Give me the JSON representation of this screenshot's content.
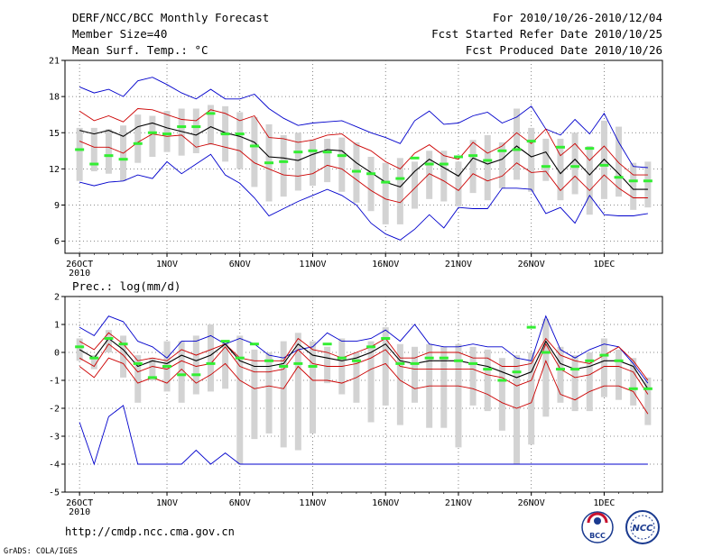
{
  "header": {
    "line1": "DERF/NCC/BCC Monthly Forecast",
    "line2": "Member Size=40",
    "line3": "Mean Surf. Temp.: °C",
    "right1": "For 2010/10/26-2010/12/04",
    "right2": "Fcst Started Refer Date 2010/10/25",
    "right3": "Fcst Produced Date 2010/10/26"
  },
  "footer": {
    "url": "http://cmdp.ncc.cma.gov.cn",
    "grads": "GrADS: COLA/IGES",
    "logo_bcc": "BCC",
    "logo_ncc": "NCC"
  },
  "colors": {
    "envelope": "#0000cc",
    "spread": "#cc0000",
    "mean": "#000000",
    "box": "#d3d3d3",
    "median": "#33ee33",
    "grid": "#666666"
  },
  "chart_data": [
    {
      "type": "line",
      "title": "Mean Surf. Temp.: °C",
      "ylim": [
        5,
        21
      ],
      "yticks": [
        6,
        9,
        12,
        15,
        18,
        21
      ],
      "xticks": [
        {
          "day": 0,
          "label": "26OCT",
          "sub": "2010"
        },
        {
          "day": 6,
          "label": "1NOV"
        },
        {
          "day": 11,
          "label": "6NOV"
        },
        {
          "day": 16,
          "label": "11NOV"
        },
        {
          "day": 21,
          "label": "16NOV"
        },
        {
          "day": 26,
          "label": "21NOV"
        },
        {
          "day": 31,
          "label": "26NOV"
        },
        {
          "day": 36,
          "label": "1DEC"
        }
      ],
      "x_range": [
        -1,
        40
      ],
      "days": [
        0,
        1,
        2,
        3,
        4,
        5,
        6,
        7,
        8,
        9,
        10,
        11,
        12,
        13,
        14,
        15,
        16,
        17,
        18,
        19,
        20,
        21,
        22,
        23,
        24,
        25,
        26,
        27,
        28,
        29,
        30,
        31,
        32,
        33,
        34,
        35,
        36,
        37,
        38,
        39
      ],
      "series": [
        {
          "name": "max",
          "role": "envelope",
          "values": [
            18.8,
            18.3,
            18.6,
            18.0,
            19.3,
            19.6,
            19.0,
            18.3,
            17.8,
            18.6,
            17.8,
            17.8,
            18.2,
            17.0,
            16.2,
            15.6,
            15.8,
            15.9,
            16.0,
            15.5,
            15.0,
            14.6,
            14.1,
            16.0,
            16.8,
            15.7,
            15.8,
            16.4,
            16.7,
            15.8,
            16.3,
            17.2,
            15.3,
            14.8,
            16.1,
            14.9,
            16.6,
            14.2,
            12.2,
            12.1
          ]
        },
        {
          "name": "mean_plus_sd",
          "role": "spread",
          "values": [
            16.8,
            16.0,
            16.4,
            15.9,
            17.0,
            16.9,
            16.5,
            16.1,
            16.0,
            16.9,
            16.6,
            16.0,
            16.4,
            14.6,
            14.5,
            14.2,
            14.4,
            14.8,
            14.9,
            14.0,
            13.5,
            12.6,
            12.0,
            13.3,
            14.0,
            13.1,
            12.8,
            14.2,
            13.3,
            13.9,
            15.0,
            14.1,
            15.3,
            13.1,
            14.1,
            12.7,
            13.9,
            12.5,
            11.5,
            11.5
          ]
        },
        {
          "name": "mean",
          "role": "mean",
          "values": [
            15.2,
            14.9,
            15.2,
            14.7,
            15.5,
            15.8,
            15.4,
            15.1,
            14.8,
            15.5,
            15.0,
            14.7,
            14.2,
            13.0,
            12.9,
            12.7,
            13.2,
            13.6,
            13.5,
            12.5,
            11.7,
            10.9,
            10.5,
            11.8,
            12.8,
            12.1,
            11.4,
            12.9,
            12.4,
            12.8,
            13.9,
            13.0,
            13.4,
            11.6,
            12.8,
            11.5,
            12.8,
            11.6,
            10.3,
            10.3
          ]
        },
        {
          "name": "mean_minus_sd",
          "role": "spread",
          "values": [
            14.3,
            13.8,
            13.8,
            13.3,
            14.2,
            14.9,
            14.7,
            14.8,
            13.8,
            14.1,
            13.8,
            13.5,
            12.5,
            12.0,
            11.5,
            11.4,
            11.6,
            12.3,
            12.0,
            11.1,
            10.2,
            9.5,
            9.2,
            10.4,
            11.6,
            11.0,
            10.2,
            11.6,
            11.0,
            11.4,
            12.5,
            11.7,
            11.8,
            10.2,
            11.4,
            10.2,
            11.5,
            10.4,
            9.6,
            9.6
          ]
        },
        {
          "name": "min",
          "role": "envelope",
          "values": [
            10.9,
            10.6,
            10.9,
            11.0,
            11.5,
            11.2,
            12.6,
            11.6,
            12.4,
            13.2,
            11.5,
            10.8,
            9.6,
            8.1,
            8.7,
            9.3,
            9.8,
            10.3,
            9.8,
            9.0,
            7.5,
            6.6,
            6.1,
            7.0,
            8.2,
            7.1,
            8.8,
            8.7,
            8.7,
            10.4,
            10.4,
            10.3,
            8.3,
            8.8,
            7.5,
            9.8,
            8.2,
            8.1,
            8.1,
            8.3
          ]
        }
      ],
      "boxes": {
        "low": [
          11.0,
          11.8,
          11.6,
          11.0,
          12.5,
          13.0,
          13.4,
          13.1,
          13.3,
          14.0,
          12.6,
          12.0,
          10.5,
          9.3,
          9.7,
          10.2,
          10.6,
          10.9,
          10.1,
          9.2,
          8.5,
          7.4,
          7.4,
          8.7,
          9.5,
          9.3,
          8.9,
          10.0,
          9.4,
          10.4,
          11.1,
          10.1,
          11.0,
          9.4,
          9.9,
          8.2,
          9.5,
          9.7,
          8.6,
          8.8
        ],
        "high": [
          15.4,
          15.4,
          15.3,
          15.6,
          16.5,
          16.4,
          16.8,
          17.0,
          17.0,
          17.3,
          17.2,
          16.7,
          16.3,
          15.7,
          14.8,
          15.0,
          14.4,
          14.5,
          14.6,
          14.2,
          13.0,
          12.5,
          12.9,
          12.6,
          13.5,
          13.5,
          12.6,
          14.4,
          14.8,
          14.2,
          17.0,
          15.4,
          14.5,
          14.5,
          15.0,
          13.9,
          16.0,
          15.5,
          12.5,
          12.6
        ],
        "median": [
          13.6,
          12.4,
          13.1,
          12.8,
          14.1,
          15.0,
          14.9,
          15.5,
          15.5,
          16.6,
          14.9,
          14.9,
          13.9,
          12.5,
          12.6,
          13.4,
          13.5,
          13.4,
          13.1,
          11.8,
          11.6,
          10.9,
          11.2,
          12.9,
          12.4,
          12.4,
          13.0,
          13.1,
          12.7,
          13.5,
          13.6,
          14.3,
          12.2,
          13.8,
          12.2,
          13.7,
          12.3,
          11.3,
          11.0,
          11.0
        ]
      }
    },
    {
      "type": "line",
      "title": "Prec.: log(mm/d)",
      "ylim": [
        -5,
        2
      ],
      "yticks": [
        -5,
        -4,
        -3,
        -2,
        -1,
        0,
        1,
        2
      ],
      "xticks": [
        {
          "day": 0,
          "label": "26OCT",
          "sub": "2010"
        },
        {
          "day": 6,
          "label": "1NOV"
        },
        {
          "day": 11,
          "label": "6NOV"
        },
        {
          "day": 16,
          "label": "11NOV"
        },
        {
          "day": 21,
          "label": "16NOV"
        },
        {
          "day": 26,
          "label": "21NOV"
        },
        {
          "day": 31,
          "label": "26NOV"
        },
        {
          "day": 36,
          "label": "1DEC"
        }
      ],
      "x_range": [
        -1,
        40
      ],
      "days": [
        0,
        1,
        2,
        3,
        4,
        5,
        6,
        7,
        8,
        9,
        10,
        11,
        12,
        13,
        14,
        15,
        16,
        17,
        18,
        19,
        20,
        21,
        22,
        23,
        24,
        25,
        26,
        27,
        28,
        29,
        30,
        31,
        32,
        33,
        34,
        35,
        36,
        37,
        38,
        39
      ],
      "series": [
        {
          "name": "max",
          "role": "envelope",
          "values": [
            0.9,
            0.6,
            1.3,
            1.1,
            0.4,
            0.2,
            -0.2,
            0.4,
            0.4,
            0.6,
            0.3,
            0.5,
            0.3,
            -0.1,
            -0.2,
            0.1,
            0.2,
            0.7,
            0.4,
            0.4,
            0.5,
            0.8,
            0.4,
            1.0,
            0.3,
            0.2,
            0.2,
            0.3,
            0.2,
            0.2,
            -0.2,
            -0.3,
            1.3,
            0.1,
            -0.2,
            0.1,
            0.3,
            0.2,
            -0.4,
            -1.1
          ]
        },
        {
          "name": "mean_plus_sd",
          "role": "spread",
          "values": [
            0.4,
            0.1,
            0.7,
            0.3,
            -0.3,
            -0.2,
            -0.3,
            0.1,
            -0.1,
            0.1,
            0.3,
            -0.2,
            -0.3,
            -0.3,
            -0.3,
            0.5,
            0.1,
            0.0,
            -0.2,
            0.0,
            0.2,
            0.5,
            -0.2,
            -0.2,
            0.0,
            0.0,
            0.0,
            -0.2,
            -0.2,
            -0.5,
            -0.5,
            -0.4,
            0.5,
            -0.1,
            -0.3,
            -0.4,
            -0.1,
            0.2,
            -0.3,
            -1.0
          ]
        },
        {
          "name": "mean",
          "role": "mean",
          "values": [
            0.1,
            -0.2,
            0.5,
            0.1,
            -0.5,
            -0.3,
            -0.4,
            -0.1,
            -0.3,
            -0.1,
            0.3,
            -0.3,
            -0.5,
            -0.5,
            -0.4,
            0.3,
            -0.1,
            -0.2,
            -0.3,
            -0.2,
            0.0,
            0.3,
            -0.3,
            -0.4,
            -0.3,
            -0.3,
            -0.3,
            -0.4,
            -0.5,
            -0.7,
            -0.9,
            -0.7,
            0.4,
            -0.4,
            -0.6,
            -0.5,
            -0.3,
            -0.3,
            -0.5,
            -1.3
          ]
        },
        {
          "name": "mean_minus_sd",
          "role": "spread",
          "values": [
            -0.2,
            -0.5,
            0.3,
            -0.1,
            -0.7,
            -0.5,
            -0.6,
            -0.3,
            -0.5,
            -0.4,
            0.2,
            -0.5,
            -0.7,
            -0.7,
            -0.6,
            0.1,
            -0.4,
            -0.5,
            -0.5,
            -0.4,
            -0.2,
            0.1,
            -0.5,
            -0.6,
            -0.6,
            -0.6,
            -0.6,
            -0.6,
            -0.8,
            -0.9,
            -1.2,
            -1.0,
            0.3,
            -0.6,
            -0.9,
            -0.8,
            -0.5,
            -0.5,
            -0.7,
            -1.5
          ]
        },
        {
          "name": "min",
          "role": "envelope",
          "values": [
            -2.5,
            -4.0,
            -2.3,
            -1.9,
            -4.0,
            -4.0,
            -4.0,
            -4.0,
            -3.5,
            -4.0,
            -3.6,
            -4.0,
            -4.0,
            -4.0,
            -4.0,
            -4.0,
            -4.0,
            -4.0,
            -4.0,
            -4.0,
            -4.0,
            -4.0,
            -4.0,
            -4.0,
            -4.0,
            -4.0,
            -4.0,
            -4.0,
            -4.0,
            -4.0,
            -4.0,
            -4.0,
            -4.0,
            -4.0,
            -4.0,
            -4.0,
            -4.0,
            -4.0,
            -4.0,
            -4.0
          ]
        },
        {
          "name": "mean_minus_2sd",
          "role": "spread",
          "values": [
            -0.5,
            -0.9,
            -0.2,
            -0.4,
            -1.1,
            -0.9,
            -1.1,
            -0.6,
            -1.1,
            -0.8,
            -0.4,
            -1.0,
            -1.3,
            -1.2,
            -1.3,
            -0.5,
            -1.0,
            -1.0,
            -1.1,
            -0.9,
            -0.6,
            -0.4,
            -1.0,
            -1.3,
            -1.2,
            -1.2,
            -1.2,
            -1.3,
            -1.5,
            -1.8,
            -2.0,
            -1.8,
            -0.3,
            -1.5,
            -1.7,
            -1.4,
            -1.2,
            -1.2,
            -1.4,
            -2.2
          ]
        }
      ],
      "boxes": {
        "low": [
          -0.3,
          -0.6,
          0.0,
          -0.9,
          -1.8,
          -1.0,
          -1.4,
          -1.8,
          -1.5,
          -1.4,
          -1.3,
          -4.0,
          -3.1,
          -2.9,
          -3.4,
          -3.5,
          -2.9,
          -1.1,
          -1.5,
          -1.8,
          -2.5,
          -1.9,
          -2.6,
          -1.8,
          -2.7,
          -2.7,
          -3.4,
          -1.9,
          -2.1,
          -2.8,
          -4.0,
          -3.3,
          -2.3,
          -1.8,
          -2.1,
          -2.1,
          -1.6,
          -1.7,
          -1.9,
          -2.6
        ],
        "high": [
          0.5,
          -0.1,
          0.8,
          0.6,
          -0.1,
          -0.2,
          0.4,
          0.4,
          0.6,
          1.0,
          0.4,
          0.6,
          0.1,
          0.0,
          0.4,
          0.7,
          0.4,
          0.2,
          0.5,
          0.0,
          0.4,
          0.9,
          0.3,
          0.2,
          0.3,
          0.2,
          0.3,
          0.2,
          0.1,
          -0.2,
          -0.1,
          0.0,
          1.2,
          0.2,
          -0.1,
          0.0,
          0.5,
          0.1,
          -0.2,
          -0.9
        ],
        "median": [
          0.2,
          -0.2,
          0.5,
          0.3,
          -0.4,
          -0.9,
          -0.5,
          -0.8,
          -0.8,
          -0.4,
          0.4,
          -0.2,
          0.3,
          -0.3,
          -0.5,
          -0.4,
          -0.5,
          0.3,
          -0.2,
          -0.3,
          0.2,
          0.5,
          -0.4,
          -0.4,
          -0.2,
          -0.2,
          -0.3,
          -0.4,
          -0.6,
          -1.0,
          -0.7,
          0.9,
          0.0,
          -0.6,
          -0.6,
          -0.3,
          -0.1,
          -0.3,
          -1.3,
          -1.3
        ]
      }
    }
  ]
}
